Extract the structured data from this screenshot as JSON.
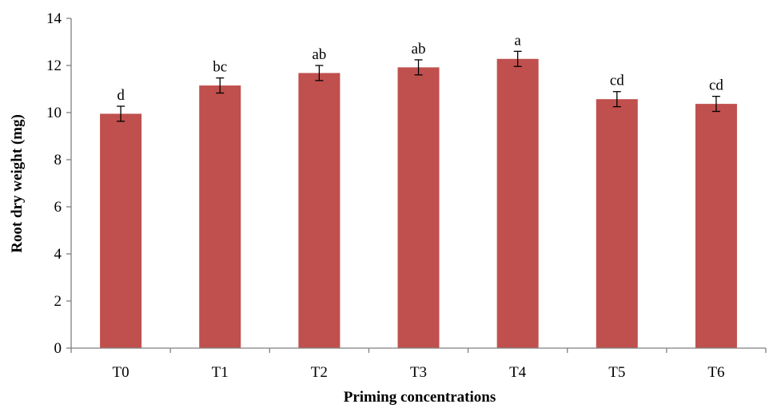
{
  "chart_data": {
    "type": "bar",
    "categories": [
      "T0",
      "T1",
      "T2",
      "T3",
      "T4",
      "T5",
      "T6"
    ],
    "values": [
      9.95,
      11.15,
      11.68,
      11.92,
      12.28,
      10.57,
      10.37
    ],
    "errors": [
      0.32,
      0.32,
      0.32,
      0.32,
      0.32,
      0.32,
      0.32
    ],
    "significance_letters": [
      "d",
      "bc",
      "ab",
      "ab",
      "a",
      "cd",
      "cd"
    ],
    "title": "",
    "xlabel": "Priming concentrations",
    "ylabel": "Root dry weight (mg)",
    "ylim": [
      0,
      14
    ],
    "yticks": [
      "0",
      "2",
      "4",
      "6",
      "8",
      "10",
      "12",
      "14"
    ],
    "grid": false,
    "legend": "none",
    "bar_color": "#c0504d"
  }
}
